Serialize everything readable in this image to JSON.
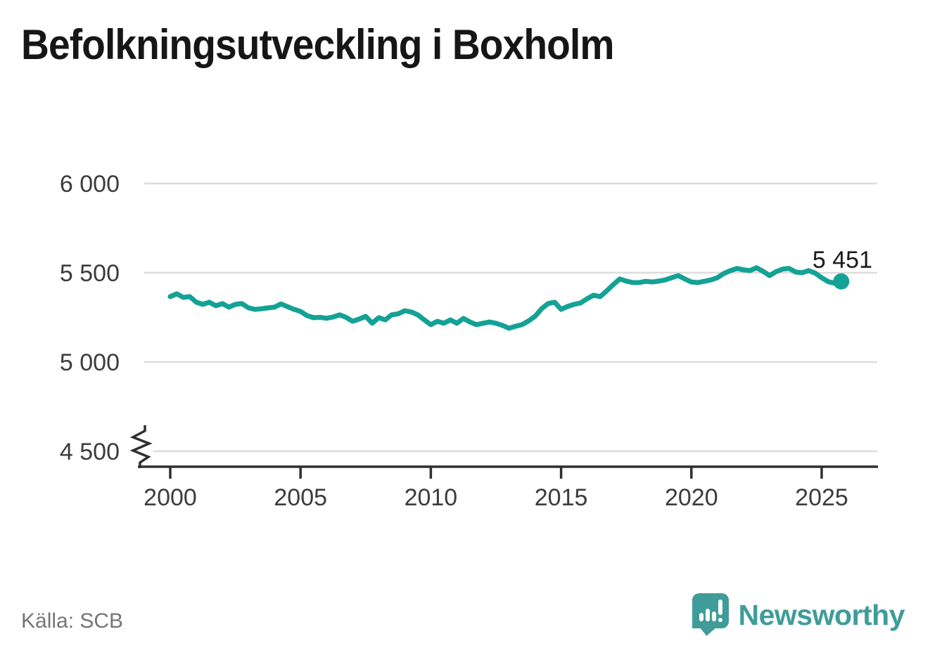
{
  "title": "Befolkningsutveckling i Boxholm",
  "source": "Källa: SCB",
  "brand": {
    "wordmark": "Newsworthy",
    "color": "#3f9c99"
  },
  "colors": {
    "line": "#13a295",
    "marker": "#13a295",
    "grid": "#dcdcdc",
    "axis": "#2f2f2f",
    "tick_label": "#3c3c3c",
    "title": "#161616",
    "source_text": "#757575",
    "end_label_text": "#1a1a1a"
  },
  "chart_data": {
    "type": "line",
    "title": "Befolkningsutveckling i Boxholm",
    "xlabel": "",
    "ylabel": "",
    "x_unit": "year, quarterly observations",
    "x_start": 2000,
    "x_step": 0.25,
    "values": [
      5366,
      5382,
      5362,
      5366,
      5335,
      5323,
      5335,
      5315,
      5327,
      5307,
      5323,
      5327,
      5303,
      5295,
      5298,
      5303,
      5307,
      5325,
      5310,
      5295,
      5283,
      5260,
      5248,
      5250,
      5245,
      5252,
      5264,
      5250,
      5228,
      5240,
      5256,
      5217,
      5248,
      5236,
      5264,
      5270,
      5287,
      5280,
      5264,
      5236,
      5209,
      5228,
      5217,
      5236,
      5217,
      5244,
      5224,
      5209,
      5217,
      5224,
      5217,
      5205,
      5189,
      5200,
      5209,
      5230,
      5256,
      5298,
      5327,
      5335,
      5295,
      5311,
      5323,
      5331,
      5354,
      5374,
      5366,
      5398,
      5433,
      5465,
      5453,
      5445,
      5445,
      5452,
      5448,
      5453,
      5460,
      5472,
      5484,
      5465,
      5448,
      5445,
      5452,
      5460,
      5472,
      5496,
      5512,
      5524,
      5516,
      5512,
      5528,
      5508,
      5484,
      5506,
      5520,
      5524,
      5504,
      5500,
      5512,
      5498,
      5472,
      5450,
      5441,
      5451
    ],
    "x_ticks": [
      {
        "value": 2000,
        "label": "2000"
      },
      {
        "value": 2005,
        "label": "2005"
      },
      {
        "value": 2010,
        "label": "2010"
      },
      {
        "value": 2015,
        "label": "2015"
      },
      {
        "value": 2020,
        "label": "2020"
      },
      {
        "value": 2025,
        "label": "2025"
      }
    ],
    "y_ticks": [
      {
        "value": 6000,
        "label": "6 000"
      },
      {
        "value": 5500,
        "label": "5 500"
      },
      {
        "value": 5000,
        "label": "5 000"
      },
      {
        "value": 4500,
        "label": "4 500"
      }
    ],
    "ylim": [
      4500,
      6000
    ],
    "y_axis_break": true,
    "grid": "horizontal-only",
    "legend": "none",
    "last_point": {
      "value": 5451,
      "label": "5 451"
    },
    "source": "Källa: SCB"
  }
}
